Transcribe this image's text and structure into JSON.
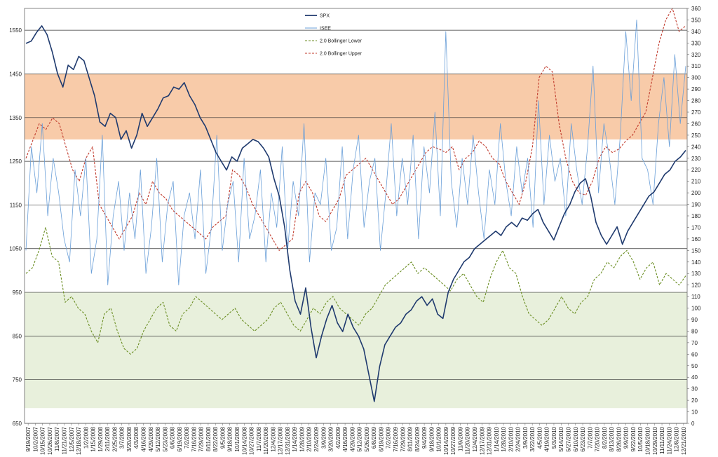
{
  "chart_data": {
    "type": "line",
    "title": "",
    "left_axis": {
      "min": 650,
      "max": 1600,
      "ticks": [
        650,
        750,
        850,
        950,
        1050,
        1150,
        1250,
        1350,
        1450,
        1550
      ]
    },
    "right_axis": {
      "min": 0,
      "max": 360,
      "ticks": [
        0,
        10,
        20,
        30,
        40,
        50,
        60,
        70,
        80,
        90,
        100,
        110,
        120,
        130,
        140,
        150,
        160,
        170,
        180,
        190,
        200,
        210,
        220,
        230,
        240,
        250,
        260,
        270,
        280,
        290,
        300,
        310,
        320,
        330,
        340,
        350,
        360
      ]
    },
    "x_tick_labels": [
      "9/19/2007",
      "10/2/2007",
      "10/15/2007",
      "10/26/2007",
      "11/8/2007",
      "11/21/2007",
      "12/5/2007",
      "12/18/2007",
      "1/2/2008",
      "1/15/2008",
      "1/29/2008",
      "2/11/2008",
      "2/25/2008",
      "3/7/2008",
      "3/20/2008",
      "4/3/2008",
      "4/16/2008",
      "4/29/2008",
      "5/12/2008",
      "5/23/2008",
      "6/6/2008",
      "6/19/2008",
      "7/2/2008",
      "7/16/2008",
      "7/29/2008",
      "8/11/2008",
      "8/22/2008",
      "9/5/2008",
      "9/18/2008",
      "10/1/2008",
      "10/14/2008",
      "10/27/2008",
      "11/7/2008",
      "11/20/2008",
      "12/4/2008",
      "12/17/2008",
      "12/31/2008",
      "1/14/2009",
      "1/28/2009",
      "2/10/2009",
      "2/24/2009",
      "3/9/2009",
      "3/20/2009",
      "4/2/2009",
      "4/16/2009",
      "4/29/2009",
      "5/12/2009",
      "5/26/2009",
      "6/8/2009",
      "6/19/2009",
      "7/2/2009",
      "7/16/2009",
      "7/29/2009",
      "8/11/2009",
      "8/24/2009",
      "9/4/2009",
      "9/18/2009",
      "10/1/2009",
      "10/14/2009",
      "10/27/2009",
      "11/9/2009",
      "11/20/2009",
      "12/4/2009",
      "12/17/2009",
      "12/31/2009",
      "1/14/2010",
      "1/28/2010",
      "2/10/2010",
      "2/24/2010",
      "3/9/2010",
      "3/22/2010",
      "4/5/2010",
      "4/19/2010",
      "5/3/2010",
      "5/14/2010",
      "5/27/2010",
      "6/10/2010",
      "6/23/2010",
      "7/7/2010",
      "7/20/2010",
      "8/2/2010",
      "8/13/2010",
      "8/26/2010",
      "9/9/2010",
      "9/22/2010",
      "10/5/2010",
      "10/18/2010",
      "10/29/2010",
      "11/11/2010",
      "11/24/2010",
      "12/8/2010",
      "12/21/2010"
    ],
    "bands": [
      {
        "name": "upper-zone",
        "from": 1300,
        "to": 1450,
        "color": "#f8cba9"
      },
      {
        "name": "lower-zone",
        "from": 685,
        "to": 950,
        "color": "#e8f0dc"
      }
    ],
    "series": [
      {
        "name": "SPX",
        "axis": "left",
        "color": "#1f3a6e",
        "style": "solid",
        "values": [
          1520,
          1525,
          1545,
          1560,
          1540,
          1500,
          1450,
          1420,
          1470,
          1460,
          1490,
          1480,
          1440,
          1400,
          1340,
          1330,
          1360,
          1350,
          1300,
          1320,
          1280,
          1310,
          1360,
          1330,
          1350,
          1370,
          1395,
          1400,
          1420,
          1415,
          1430,
          1400,
          1380,
          1350,
          1330,
          1300,
          1270,
          1250,
          1230,
          1260,
          1250,
          1280,
          1290,
          1300,
          1295,
          1280,
          1260,
          1210,
          1170,
          1100,
          1000,
          930,
          900,
          960,
          870,
          800,
          850,
          890,
          920,
          880,
          860,
          900,
          870,
          850,
          820,
          760,
          700,
          780,
          830,
          850,
          870,
          880,
          900,
          910,
          930,
          940,
          920,
          935,
          900,
          890,
          950,
          980,
          1000,
          1020,
          1030,
          1050,
          1060,
          1070,
          1080,
          1090,
          1080,
          1100,
          1110,
          1100,
          1120,
          1115,
          1130,
          1140,
          1110,
          1090,
          1070,
          1100,
          1130,
          1150,
          1180,
          1200,
          1210,
          1170,
          1110,
          1080,
          1060,
          1080,
          1100,
          1060,
          1090,
          1110,
          1130,
          1150,
          1170,
          1180,
          1200,
          1220,
          1230,
          1250,
          1260,
          1275
        ]
      },
      {
        "name": "ISEE",
        "axis": "right",
        "color": "#6a9fd8",
        "style": "solid",
        "values": [
          150,
          240,
          200,
          260,
          180,
          230,
          200,
          160,
          140,
          220,
          180,
          230,
          130,
          160,
          250,
          120,
          180,
          210,
          150,
          200,
          160,
          220,
          130,
          170,
          230,
          140,
          190,
          210,
          120,
          180,
          200,
          160,
          220,
          130,
          170,
          250,
          150,
          190,
          210,
          140,
          230,
          160,
          180,
          220,
          140,
          200,
          170,
          240,
          150,
          210,
          180,
          260,
          140,
          200,
          190,
          230,
          150,
          170,
          240,
          160,
          220,
          250,
          170,
          210,
          230,
          150,
          200,
          260,
          180,
          230,
          190,
          250,
          160,
          240,
          200,
          270,
          180,
          340,
          210,
          170,
          230,
          190,
          250,
          200,
          160,
          220,
          190,
          260,
          210,
          180,
          240,
          200,
          230,
          170,
          280,
          190,
          250,
          210,
          230,
          180,
          260,
          220,
          190,
          240,
          310,
          200,
          260,
          230,
          190,
          250,
          340,
          280,
          350,
          230,
          220,
          190,
          260,
          300,
          240,
          320,
          260,
          310
        ]
      },
      {
        "name": "2.0 Bollinger Lower",
        "axis": "right",
        "color": "#6b8e23",
        "style": "dashed",
        "values": [
          130,
          135,
          150,
          170,
          145,
          140,
          105,
          110,
          100,
          95,
          80,
          70,
          95,
          100,
          80,
          65,
          60,
          65,
          80,
          90,
          100,
          105,
          85,
          80,
          95,
          100,
          110,
          105,
          100,
          95,
          90,
          95,
          100,
          90,
          85,
          80,
          85,
          90,
          100,
          105,
          95,
          85,
          80,
          90,
          100,
          95,
          105,
          110,
          100,
          95,
          90,
          85,
          95,
          100,
          110,
          120,
          125,
          130,
          135,
          140,
          130,
          135,
          130,
          125,
          120,
          115,
          125,
          130,
          120,
          110,
          105,
          125,
          140,
          150,
          135,
          130,
          110,
          95,
          90,
          85,
          90,
          100,
          110,
          100,
          95,
          105,
          110,
          125,
          130,
          140,
          135,
          145,
          150,
          140,
          125,
          135,
          140,
          120,
          130,
          125,
          120,
          128
        ]
      },
      {
        "name": "2.0 Bollinger Upper",
        "axis": "right",
        "color": "#c0392b",
        "style": "dashed",
        "values": [
          230,
          245,
          260,
          255,
          265,
          260,
          240,
          220,
          210,
          230,
          240,
          190,
          180,
          170,
          160,
          170,
          180,
          200,
          190,
          210,
          200,
          195,
          185,
          180,
          175,
          170,
          165,
          160,
          170,
          175,
          180,
          220,
          215,
          205,
          190,
          180,
          170,
          160,
          150,
          155,
          160,
          200,
          210,
          200,
          180,
          175,
          185,
          195,
          215,
          220,
          225,
          230,
          220,
          210,
          200,
          190,
          195,
          205,
          215,
          225,
          235,
          240,
          238,
          235,
          240,
          220,
          230,
          235,
          245,
          240,
          230,
          225,
          210,
          200,
          190,
          210,
          240,
          300,
          310,
          305,
          260,
          230,
          210,
          200,
          198,
          210,
          230,
          240,
          235,
          238,
          245,
          250,
          260,
          270,
          300,
          330,
          350,
          360,
          340,
          345
        ]
      }
    ],
    "legend": [
      "SPX",
      "ISEE",
      "2.0 Bollinger Lower",
      "2.0 Bollinger Upper"
    ],
    "legend_placement": "top-center",
    "gridlines": true
  }
}
